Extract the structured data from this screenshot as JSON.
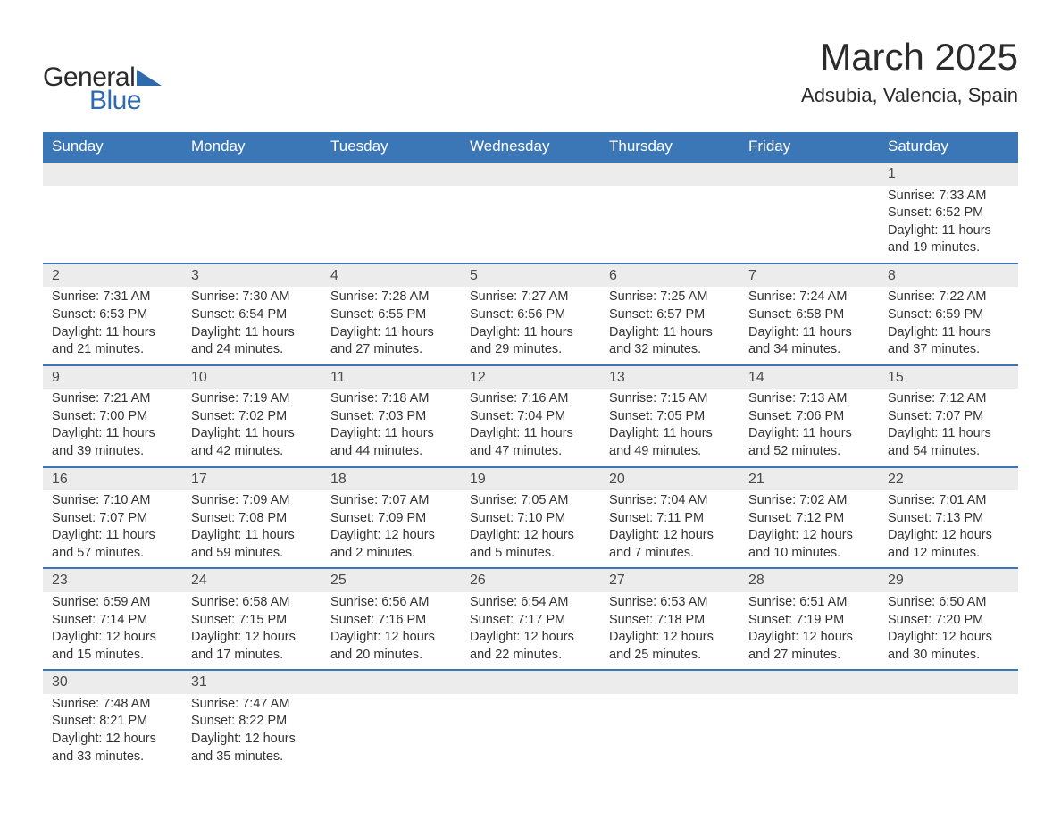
{
  "logo": {
    "word1": "General",
    "word2": "Blue",
    "text_color": "#2b2b2b",
    "accent_color": "#2f6bac"
  },
  "title": "March 2025",
  "location": "Adsubia, Valencia, Spain",
  "colors": {
    "header_bg": "#3b77b7",
    "header_text": "#ffffff",
    "daynum_bg": "#ececec",
    "row_border": "#3b77b7",
    "body_text": "#333333",
    "page_bg": "#ffffff"
  },
  "typography": {
    "title_fontsize": 42,
    "location_fontsize": 22,
    "header_fontsize": 17,
    "cell_fontsize": 14.5,
    "daynum_fontsize": 16
  },
  "weekdays": [
    "Sunday",
    "Monday",
    "Tuesday",
    "Wednesday",
    "Thursday",
    "Friday",
    "Saturday"
  ],
  "weeks": [
    [
      null,
      null,
      null,
      null,
      null,
      null,
      {
        "d": "1",
        "sr": "Sunrise: 7:33 AM",
        "ss": "Sunset: 6:52 PM",
        "dl1": "Daylight: 11 hours",
        "dl2": "and 19 minutes."
      }
    ],
    [
      {
        "d": "2",
        "sr": "Sunrise: 7:31 AM",
        "ss": "Sunset: 6:53 PM",
        "dl1": "Daylight: 11 hours",
        "dl2": "and 21 minutes."
      },
      {
        "d": "3",
        "sr": "Sunrise: 7:30 AM",
        "ss": "Sunset: 6:54 PM",
        "dl1": "Daylight: 11 hours",
        "dl2": "and 24 minutes."
      },
      {
        "d": "4",
        "sr": "Sunrise: 7:28 AM",
        "ss": "Sunset: 6:55 PM",
        "dl1": "Daylight: 11 hours",
        "dl2": "and 27 minutes."
      },
      {
        "d": "5",
        "sr": "Sunrise: 7:27 AM",
        "ss": "Sunset: 6:56 PM",
        "dl1": "Daylight: 11 hours",
        "dl2": "and 29 minutes."
      },
      {
        "d": "6",
        "sr": "Sunrise: 7:25 AM",
        "ss": "Sunset: 6:57 PM",
        "dl1": "Daylight: 11 hours",
        "dl2": "and 32 minutes."
      },
      {
        "d": "7",
        "sr": "Sunrise: 7:24 AM",
        "ss": "Sunset: 6:58 PM",
        "dl1": "Daylight: 11 hours",
        "dl2": "and 34 minutes."
      },
      {
        "d": "8",
        "sr": "Sunrise: 7:22 AM",
        "ss": "Sunset: 6:59 PM",
        "dl1": "Daylight: 11 hours",
        "dl2": "and 37 minutes."
      }
    ],
    [
      {
        "d": "9",
        "sr": "Sunrise: 7:21 AM",
        "ss": "Sunset: 7:00 PM",
        "dl1": "Daylight: 11 hours",
        "dl2": "and 39 minutes."
      },
      {
        "d": "10",
        "sr": "Sunrise: 7:19 AM",
        "ss": "Sunset: 7:02 PM",
        "dl1": "Daylight: 11 hours",
        "dl2": "and 42 minutes."
      },
      {
        "d": "11",
        "sr": "Sunrise: 7:18 AM",
        "ss": "Sunset: 7:03 PM",
        "dl1": "Daylight: 11 hours",
        "dl2": "and 44 minutes."
      },
      {
        "d": "12",
        "sr": "Sunrise: 7:16 AM",
        "ss": "Sunset: 7:04 PM",
        "dl1": "Daylight: 11 hours",
        "dl2": "and 47 minutes."
      },
      {
        "d": "13",
        "sr": "Sunrise: 7:15 AM",
        "ss": "Sunset: 7:05 PM",
        "dl1": "Daylight: 11 hours",
        "dl2": "and 49 minutes."
      },
      {
        "d": "14",
        "sr": "Sunrise: 7:13 AM",
        "ss": "Sunset: 7:06 PM",
        "dl1": "Daylight: 11 hours",
        "dl2": "and 52 minutes."
      },
      {
        "d": "15",
        "sr": "Sunrise: 7:12 AM",
        "ss": "Sunset: 7:07 PM",
        "dl1": "Daylight: 11 hours",
        "dl2": "and 54 minutes."
      }
    ],
    [
      {
        "d": "16",
        "sr": "Sunrise: 7:10 AM",
        "ss": "Sunset: 7:07 PM",
        "dl1": "Daylight: 11 hours",
        "dl2": "and 57 minutes."
      },
      {
        "d": "17",
        "sr": "Sunrise: 7:09 AM",
        "ss": "Sunset: 7:08 PM",
        "dl1": "Daylight: 11 hours",
        "dl2": "and 59 minutes."
      },
      {
        "d": "18",
        "sr": "Sunrise: 7:07 AM",
        "ss": "Sunset: 7:09 PM",
        "dl1": "Daylight: 12 hours",
        "dl2": "and 2 minutes."
      },
      {
        "d": "19",
        "sr": "Sunrise: 7:05 AM",
        "ss": "Sunset: 7:10 PM",
        "dl1": "Daylight: 12 hours",
        "dl2": "and 5 minutes."
      },
      {
        "d": "20",
        "sr": "Sunrise: 7:04 AM",
        "ss": "Sunset: 7:11 PM",
        "dl1": "Daylight: 12 hours",
        "dl2": "and 7 minutes."
      },
      {
        "d": "21",
        "sr": "Sunrise: 7:02 AM",
        "ss": "Sunset: 7:12 PM",
        "dl1": "Daylight: 12 hours",
        "dl2": "and 10 minutes."
      },
      {
        "d": "22",
        "sr": "Sunrise: 7:01 AM",
        "ss": "Sunset: 7:13 PM",
        "dl1": "Daylight: 12 hours",
        "dl2": "and 12 minutes."
      }
    ],
    [
      {
        "d": "23",
        "sr": "Sunrise: 6:59 AM",
        "ss": "Sunset: 7:14 PM",
        "dl1": "Daylight: 12 hours",
        "dl2": "and 15 minutes."
      },
      {
        "d": "24",
        "sr": "Sunrise: 6:58 AM",
        "ss": "Sunset: 7:15 PM",
        "dl1": "Daylight: 12 hours",
        "dl2": "and 17 minutes."
      },
      {
        "d": "25",
        "sr": "Sunrise: 6:56 AM",
        "ss": "Sunset: 7:16 PM",
        "dl1": "Daylight: 12 hours",
        "dl2": "and 20 minutes."
      },
      {
        "d": "26",
        "sr": "Sunrise: 6:54 AM",
        "ss": "Sunset: 7:17 PM",
        "dl1": "Daylight: 12 hours",
        "dl2": "and 22 minutes."
      },
      {
        "d": "27",
        "sr": "Sunrise: 6:53 AM",
        "ss": "Sunset: 7:18 PM",
        "dl1": "Daylight: 12 hours",
        "dl2": "and 25 minutes."
      },
      {
        "d": "28",
        "sr": "Sunrise: 6:51 AM",
        "ss": "Sunset: 7:19 PM",
        "dl1": "Daylight: 12 hours",
        "dl2": "and 27 minutes."
      },
      {
        "d": "29",
        "sr": "Sunrise: 6:50 AM",
        "ss": "Sunset: 7:20 PM",
        "dl1": "Daylight: 12 hours",
        "dl2": "and 30 minutes."
      }
    ],
    [
      {
        "d": "30",
        "sr": "Sunrise: 7:48 AM",
        "ss": "Sunset: 8:21 PM",
        "dl1": "Daylight: 12 hours",
        "dl2": "and 33 minutes."
      },
      {
        "d": "31",
        "sr": "Sunrise: 7:47 AM",
        "ss": "Sunset: 8:22 PM",
        "dl1": "Daylight: 12 hours",
        "dl2": "and 35 minutes."
      },
      null,
      null,
      null,
      null,
      null
    ]
  ]
}
